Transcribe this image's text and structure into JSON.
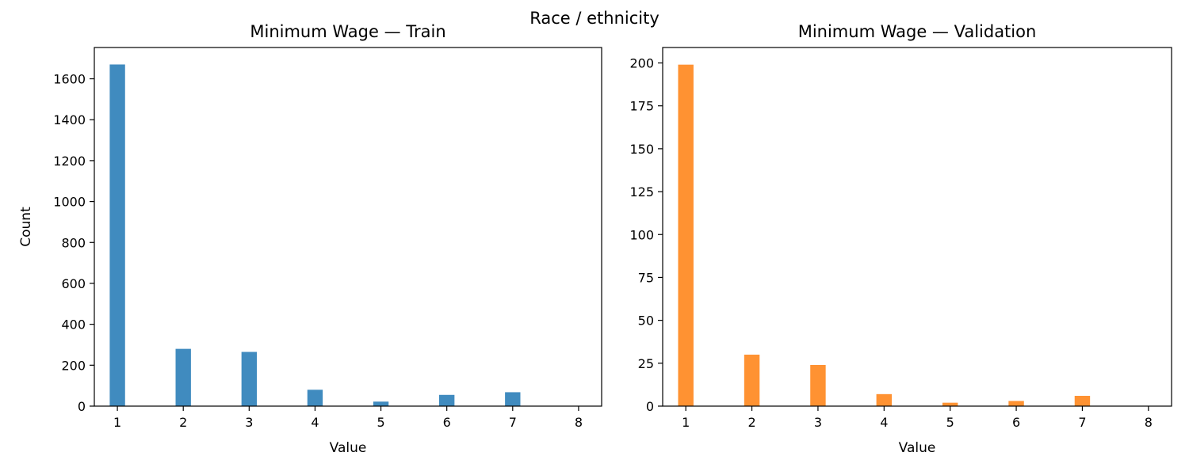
{
  "figure": {
    "suptitle": "Race / ethnicity"
  },
  "chart_data": [
    {
      "type": "bar",
      "title": "Minimum Wage — Train",
      "xlabel": "Value",
      "ylabel": "Count",
      "color": "#1f77b4",
      "x": [
        1,
        2,
        3,
        4,
        5,
        6,
        7,
        8
      ],
      "values": [
        1670,
        280,
        265,
        80,
        22,
        55,
        68,
        0
      ],
      "xlim": [
        0.65,
        8.35
      ],
      "ylim": [
        0,
        1753
      ],
      "xticks": [
        1,
        2,
        3,
        4,
        5,
        6,
        7,
        8
      ],
      "yticks": [
        0,
        200,
        400,
        600,
        800,
        1000,
        1200,
        1400,
        1600
      ],
      "grid": false
    },
    {
      "type": "bar",
      "title": "Minimum Wage — Validation",
      "xlabel": "Value",
      "ylabel": "",
      "color": "#ff7f0e",
      "x": [
        1,
        2,
        3,
        4,
        5,
        6,
        7,
        8
      ],
      "values": [
        199,
        30,
        24,
        7,
        2,
        3,
        6,
        0
      ],
      "xlim": [
        0.65,
        8.35
      ],
      "ylim": [
        0,
        209
      ],
      "xticks": [
        1,
        2,
        3,
        4,
        5,
        6,
        7,
        8
      ],
      "yticks": [
        0,
        25,
        50,
        75,
        100,
        125,
        150,
        175,
        200
      ],
      "grid": false
    }
  ]
}
